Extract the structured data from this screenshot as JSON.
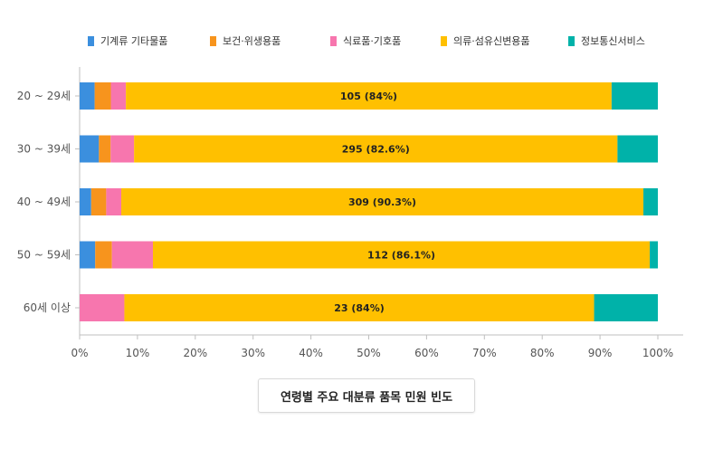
{
  "chart_data": {
    "type": "bar",
    "orientation": "horizontal",
    "stacked": "percent",
    "categories": [
      "20 ~ 29세",
      "30 ~ 39세",
      "40 ~ 49세",
      "50 ~ 59세",
      "60세 이상"
    ],
    "series": [
      {
        "name": "기계류 기타물품",
        "color": "#3B8FDE",
        "values": [
          2.6,
          3.3,
          2.0,
          2.7,
          0
        ]
      },
      {
        "name": "보건·위생용품",
        "color": "#F7941D",
        "values": [
          2.8,
          2.0,
          2.6,
          2.9,
          0
        ]
      },
      {
        "name": "식료품·기호품",
        "color": "#F776AE",
        "values": [
          2.6,
          4.0,
          2.6,
          7.1,
          8.0
        ]
      },
      {
        "name": "의류·섬유신변용품",
        "color": "#FFC000",
        "values": [
          84.0,
          82.6,
          90.3,
          86.1,
          84.0
        ]
      },
      {
        "name": "정보통신서비스",
        "color": "#00B2A9",
        "values": [
          8.0,
          6.9,
          2.5,
          1.4,
          11.4
        ]
      }
    ],
    "data_labels": [
      "105 (84%)",
      "295 (82.6%)",
      "309 (90.3%)",
      "112 (86.1%)",
      "23 (84%)"
    ],
    "xlim": [
      0,
      100
    ],
    "xticks": [
      "0%",
      "10%",
      "20%",
      "30%",
      "40%",
      "50%",
      "60%",
      "70%",
      "80%",
      "90%",
      "100%"
    ],
    "legend_position": "top",
    "grid": false,
    "caption": "연령별 주요 대분류 품목 민원 빈도"
  }
}
